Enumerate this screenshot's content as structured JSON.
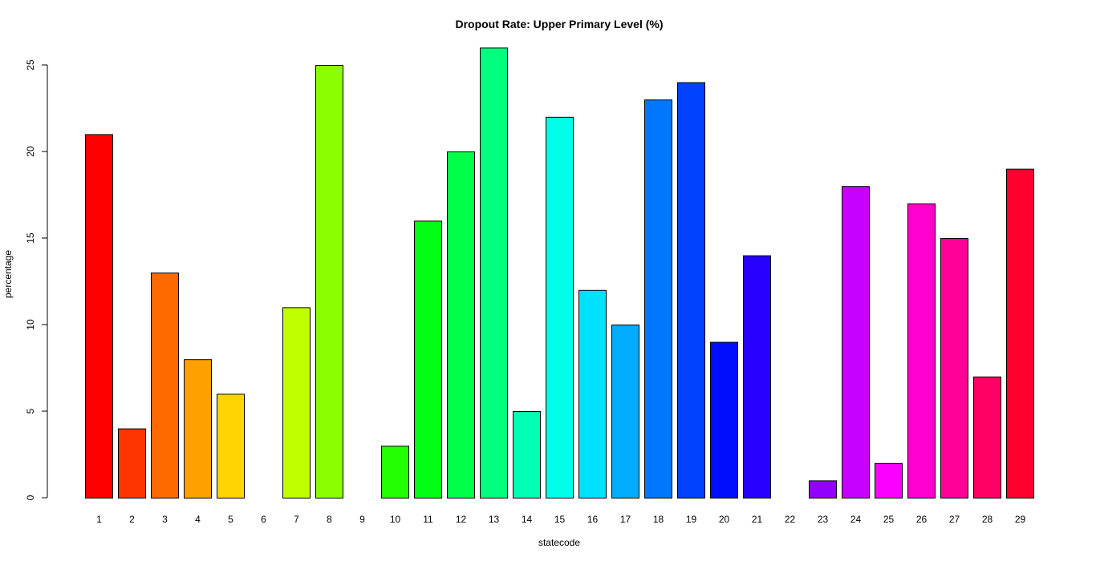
{
  "chart_data": {
    "type": "bar",
    "title": "Dropout Rate: Upper Primary Level (%)",
    "xlabel": "statecode",
    "ylabel": "percentage",
    "ylim": [
      0,
      26
    ],
    "yticks": [
      0,
      5,
      10,
      15,
      20,
      25
    ],
    "grid": false,
    "categories": [
      "1",
      "2",
      "3",
      "4",
      "5",
      "6",
      "7",
      "8",
      "9",
      "10",
      "11",
      "12",
      "13",
      "14",
      "15",
      "16",
      "17",
      "18",
      "19",
      "20",
      "21",
      "22",
      "23",
      "24",
      "25",
      "26",
      "27",
      "28",
      "29"
    ],
    "values": [
      21,
      4,
      13,
      8,
      6,
      0,
      11,
      25,
      0,
      3,
      16,
      20,
      26,
      5,
      22,
      12,
      10,
      23,
      24,
      9,
      14,
      0,
      1,
      18,
      2,
      17,
      15,
      7,
      19
    ],
    "colors": [
      "#FF0000",
      "#FF3500",
      "#FF6A00",
      "#FF9F00",
      "#FFD400",
      "#F5FF00",
      "#C0FF00",
      "#8BFF00",
      "#56FF00",
      "#21FF00",
      "#00FF14",
      "#00FF49",
      "#00FF7E",
      "#00FFB3",
      "#00FFE8",
      "#00E1FF",
      "#00ACFF",
      "#0077FF",
      "#0042FF",
      "#000DFF",
      "#2800FF",
      "#5D00FF",
      "#9200FF",
      "#C700FF",
      "#FC00FF",
      "#FF00CE",
      "#FF0099",
      "#FF0064",
      "#FF002F"
    ]
  }
}
